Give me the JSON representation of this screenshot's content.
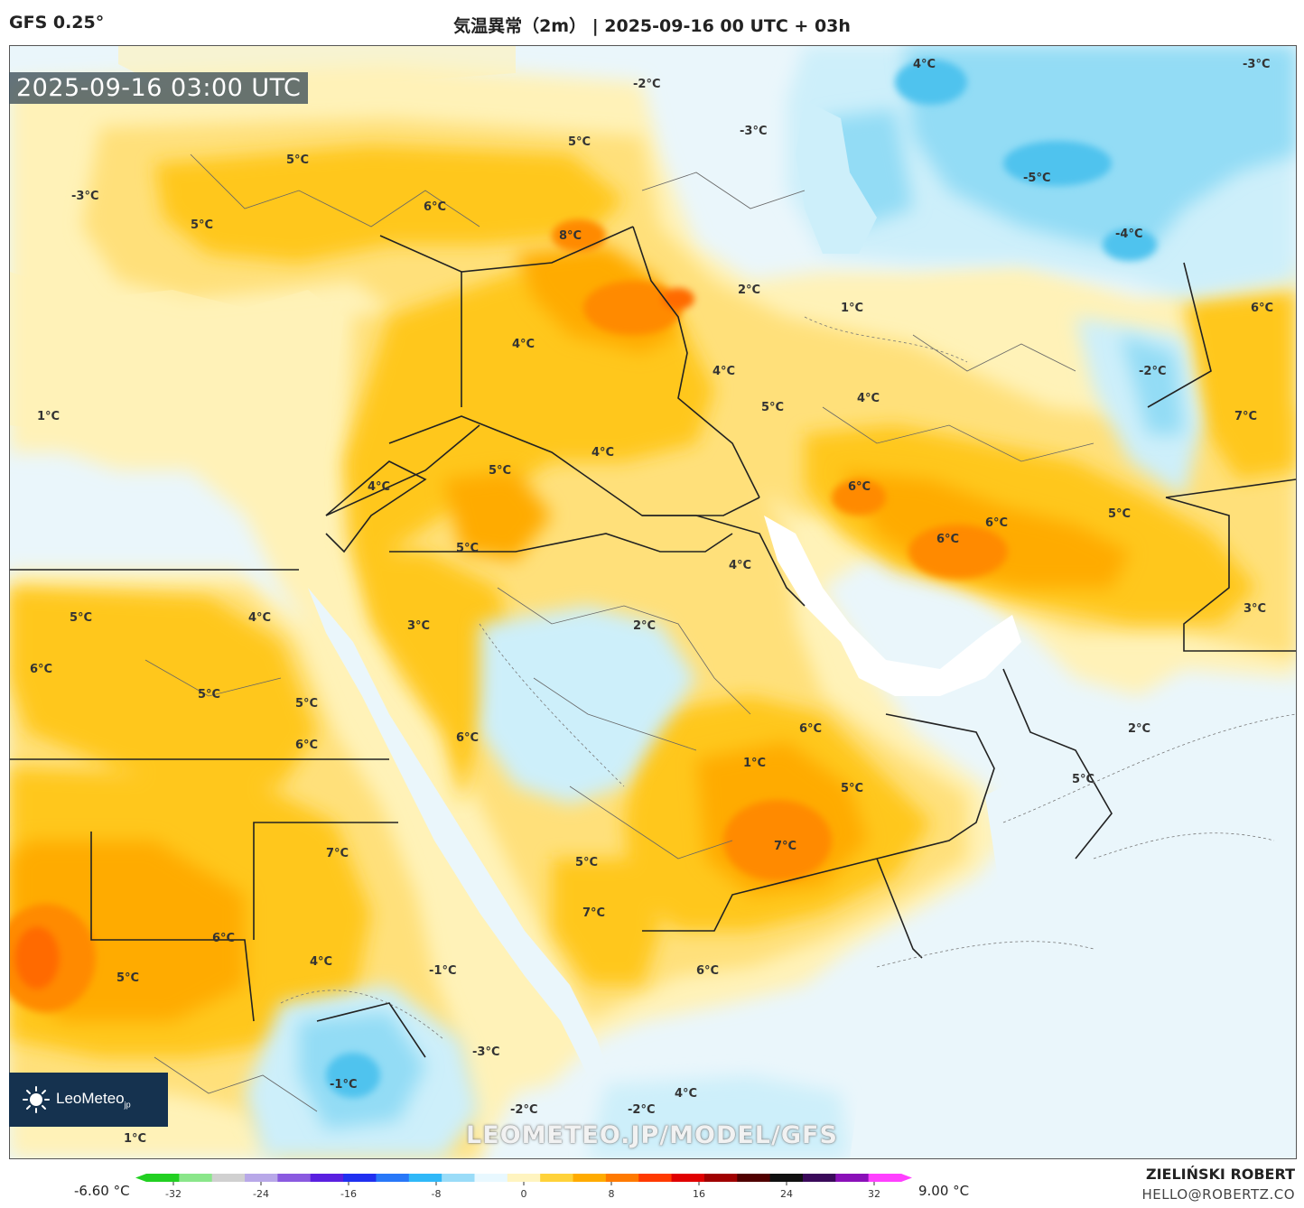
{
  "header": {
    "model": "GFS 0.25°",
    "title": "気温異常（2m） | 2025-09-16 00 UTC + 03h"
  },
  "map": {
    "valid_time": "2025-09-16 03:00 UTC",
    "labels": [
      "4°C",
      "-3°C",
      "-2°C",
      "-3°C",
      "5°C",
      "5°C",
      "-5°C",
      "-3°C",
      "6°C",
      "5°C",
      "8°C",
      "-4°C",
      "2°C",
      "1°C",
      "6°C",
      "4°C",
      "4°C",
      "-2°C",
      "1°C",
      "5°C",
      "4°C",
      "7°C",
      "4°C",
      "5°C",
      "6°C",
      "6°C",
      "5°C",
      "6°C",
      "5°C",
      "4°C",
      "5°C",
      "3°C",
      "2°C",
      "3°C",
      "4°C",
      "6°C",
      "4°C",
      "5°C",
      "5°C",
      "6°C",
      "2°C",
      "6°C",
      "6°C",
      "1°C",
      "5°C",
      "5°C",
      "7°C",
      "7°C",
      "5°C",
      "7°C",
      "6°C",
      "5°C",
      "4°C",
      "6°C",
      "-1°C",
      "-3°C",
      "-1°C",
      "4°C",
      "-2°C",
      "-2°C",
      "1°C"
    ],
    "colors": {
      "land_base": "#f3f6f7",
      "sea": "#eaf6fb",
      "warm_1": "#fff2b8",
      "warm_2": "#ffe07a",
      "warm_3": "#ffc71a",
      "warm_4": "#ffab00",
      "warm_5": "#ff8a00",
      "warm_6": "#ff6a00",
      "cool_1": "#cdeffa",
      "cool_2": "#93dcf5",
      "cool_3": "#4fc3ee"
    }
  },
  "logo": {
    "text": "LeoMeteo",
    "suffix": "jp"
  },
  "watermark": "LEOMETEO.JP/MODEL/GFS",
  "colorbar": {
    "min_label": "-6.60 °C",
    "max_label": "9.00 °C",
    "ticks": [
      "-32",
      "-24",
      "-16",
      "-8",
      "0",
      "8",
      "16",
      "24",
      "32"
    ],
    "stops": [
      "#22d022",
      "#8ae68a",
      "#d0d0d0",
      "#b8a8e8",
      "#8a5ae0",
      "#5a20e0",
      "#2030f0",
      "#2878f8",
      "#30b8f8",
      "#9adcf8",
      "#e8f8ff",
      "#fff4c0",
      "#ffd23a",
      "#ffab00",
      "#ff7a00",
      "#ff3a00",
      "#e00000",
      "#a00000",
      "#500000",
      "#101010",
      "#3a0a5a",
      "#8a10b8",
      "#ff40ff"
    ]
  },
  "credits": {
    "author": "ZIELIŃSKI ROBERT",
    "email": "HELLO@ROBERTZ.CO"
  }
}
